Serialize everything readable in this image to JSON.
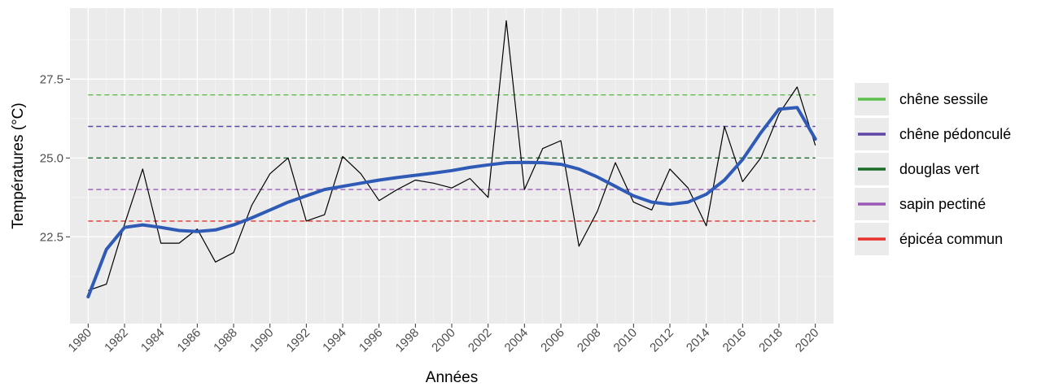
{
  "chart_data": {
    "type": "line",
    "xlabel": "Années",
    "ylabel": "Températures (°C)",
    "xlim": [
      1979,
      2021
    ],
    "ylim": [
      19.75,
      29.75
    ],
    "x_ticks": [
      1980,
      1982,
      1984,
      1986,
      1988,
      1990,
      1992,
      1994,
      1996,
      1998,
      2000,
      2002,
      2004,
      2006,
      2008,
      2010,
      2012,
      2014,
      2016,
      2018,
      2020
    ],
    "y_ticks": [
      22.5,
      25.0,
      27.5
    ],
    "y_tick_labels": [
      "22.5",
      "25.0",
      "27.5"
    ],
    "grid": true,
    "legend_position": "right",
    "series": [
      {
        "kind": "observed",
        "color": "#000000",
        "x": [
          1980,
          1981,
          1982,
          1983,
          1984,
          1985,
          1986,
          1987,
          1988,
          1989,
          1990,
          1991,
          1992,
          1993,
          1994,
          1995,
          1996,
          1997,
          1998,
          1999,
          2000,
          2001,
          2002,
          2003,
          2004,
          2005,
          2006,
          2007,
          2008,
          2009,
          2010,
          2011,
          2012,
          2013,
          2014,
          2015,
          2016,
          2017,
          2018,
          2019,
          2020
        ],
        "values": [
          20.8,
          21.0,
          22.9,
          24.65,
          22.3,
          22.3,
          22.75,
          21.7,
          22.0,
          23.5,
          24.5,
          25.0,
          23.0,
          23.2,
          25.05,
          24.5,
          23.65,
          24.0,
          24.3,
          24.2,
          24.05,
          24.35,
          23.75,
          29.35,
          24.0,
          25.3,
          25.55,
          22.2,
          23.3,
          24.85,
          23.6,
          23.35,
          24.65,
          24.05,
          22.85,
          26.0,
          24.25,
          25.0,
          26.4,
          27.25,
          25.4
        ]
      },
      {
        "kind": "smooth",
        "color": "#2f5bb7",
        "x": [
          1980,
          1981,
          1982,
          1983,
          1984,
          1985,
          1986,
          1987,
          1988,
          1989,
          1990,
          1991,
          1992,
          1993,
          1994,
          1995,
          1996,
          1997,
          1998,
          1999,
          2000,
          2001,
          2002,
          2003,
          2004,
          2005,
          2006,
          2007,
          2008,
          2009,
          2010,
          2011,
          2012,
          2013,
          2014,
          2015,
          2016,
          2017,
          2018,
          2019,
          2020
        ],
        "values": [
          20.6,
          22.1,
          22.8,
          22.88,
          22.8,
          22.7,
          22.67,
          22.72,
          22.88,
          23.1,
          23.35,
          23.6,
          23.8,
          24.0,
          24.1,
          24.2,
          24.3,
          24.38,
          24.45,
          24.52,
          24.6,
          24.7,
          24.78,
          24.85,
          24.86,
          24.85,
          24.8,
          24.65,
          24.4,
          24.1,
          23.8,
          23.6,
          23.53,
          23.6,
          23.85,
          24.3,
          24.95,
          25.8,
          26.55,
          26.6,
          25.6
        ]
      }
    ],
    "reference_lines": [
      {
        "name": "chêne sessile",
        "value": 27.0,
        "color": "#5cbf4a"
      },
      {
        "name": "chêne pédonculé",
        "value": 26.0,
        "color": "#5e45a8"
      },
      {
        "name": "douglas vert",
        "value": 25.0,
        "color": "#1a6a2a"
      },
      {
        "name": "sapin pectiné",
        "value": 24.0,
        "color": "#9b59b6"
      },
      {
        "name": "épicéa commun",
        "value": 23.0,
        "color": "#e8302a"
      }
    ]
  }
}
